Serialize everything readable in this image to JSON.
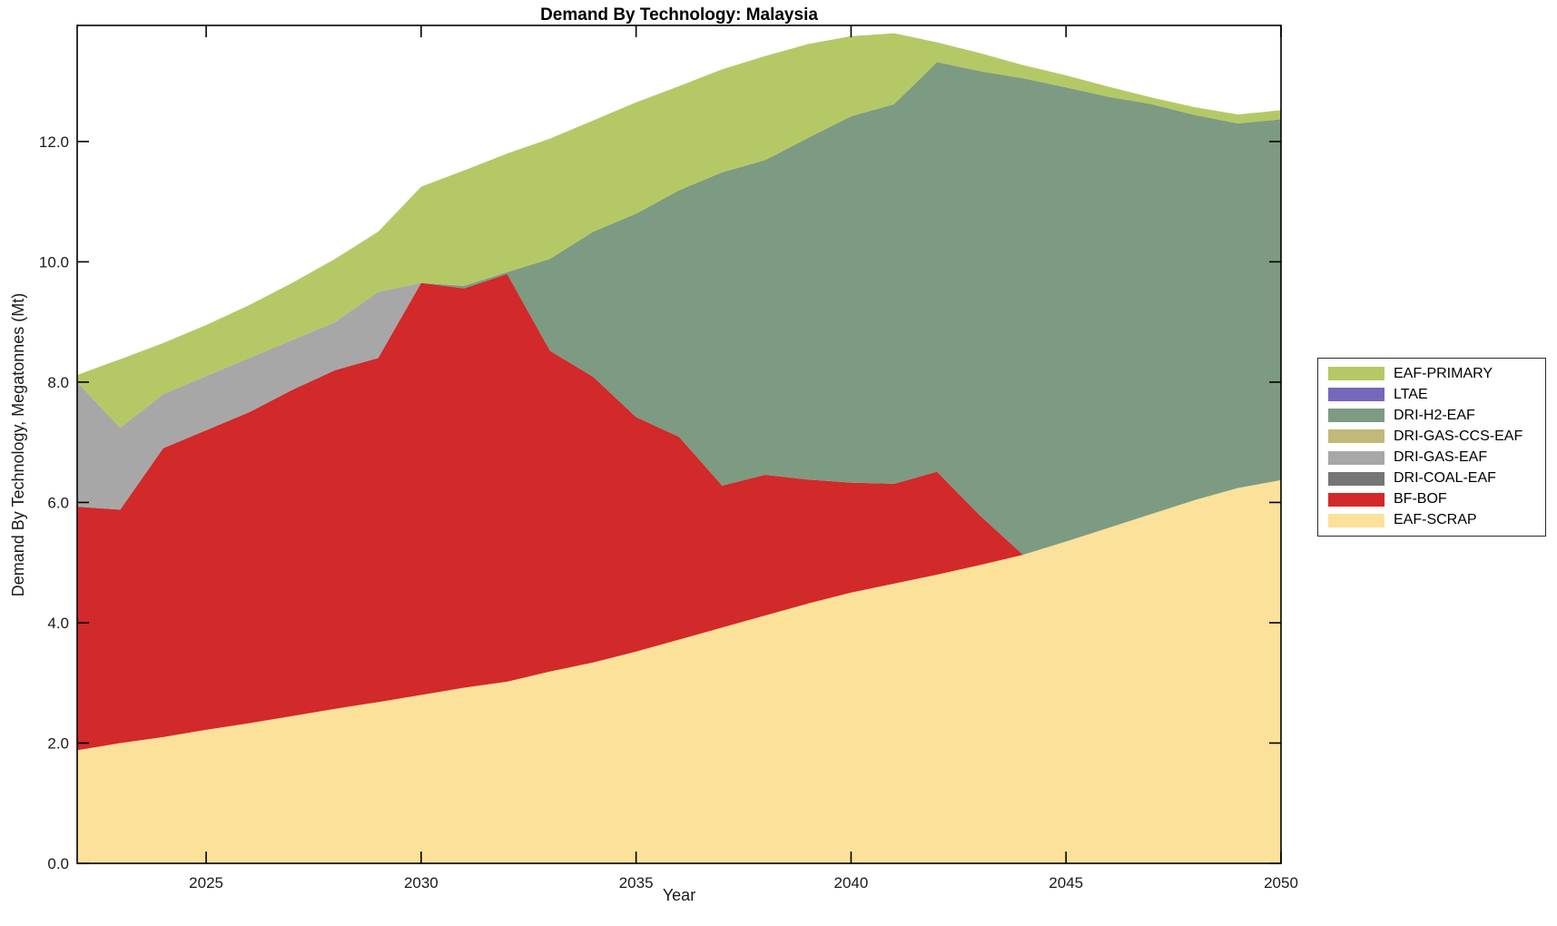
{
  "title": "Demand By Technology: Malaysia",
  "xlabel": "Year",
  "ylabel": "Demand By Technology, Megatonnes (Mt)",
  "axis_color": "#000000",
  "tick_label_color": "#1a1a1a",
  "chart_data": {
    "type": "area",
    "stacked": true,
    "title": "Demand By Technology: Malaysia",
    "xlabel": "Year",
    "ylabel": "Demand By Technology, Megatonnes (Mt)",
    "xlim": [
      2022,
      2050
    ],
    "ylim": [
      0,
      13.93
    ],
    "xticks": [
      2025,
      2030,
      2035,
      2040,
      2045,
      2050
    ],
    "yticks": [
      0,
      2,
      4,
      6,
      8,
      10,
      12
    ],
    "ytick_decimals": 1,
    "grid": false,
    "legend_position": "right-outside",
    "x": [
      2022,
      2023,
      2024,
      2025,
      2026,
      2027,
      2028,
      2029,
      2030,
      2031,
      2032,
      2033,
      2034,
      2035,
      2036,
      2037,
      2038,
      2039,
      2040,
      2041,
      2042,
      2043,
      2044,
      2045,
      2046,
      2047,
      2048,
      2049,
      2050
    ],
    "series": [
      {
        "name": "EAF-SCRAP",
        "color": "#fbe199",
        "values": [
          1.88,
          2.0,
          2.1,
          2.22,
          2.33,
          2.45,
          2.57,
          2.68,
          2.8,
          2.92,
          3.02,
          3.19,
          3.34,
          3.52,
          3.72,
          3.92,
          4.12,
          4.32,
          4.5,
          4.65,
          4.8,
          4.96,
          5.13,
          5.35,
          5.58,
          5.81,
          6.04,
          6.24,
          6.37
        ]
      },
      {
        "name": "BF-BOF",
        "color": "#d2292a",
        "values": [
          4.05,
          3.88,
          4.8,
          4.98,
          5.17,
          5.42,
          5.63,
          5.72,
          6.85,
          6.64,
          6.78,
          5.33,
          4.75,
          3.9,
          3.37,
          2.36,
          2.34,
          2.06,
          1.83,
          1.66,
          1.71,
          0.82,
          0,
          0,
          0,
          0,
          0,
          0,
          0
        ]
      },
      {
        "name": "DRI-COAL-EAF",
        "color": "#757575",
        "values": [
          0,
          0,
          0,
          0,
          0,
          0,
          0,
          0,
          0,
          0,
          0,
          0,
          0,
          0,
          0,
          0,
          0,
          0,
          0,
          0,
          0,
          0,
          0,
          0,
          0,
          0,
          0,
          0,
          0
        ]
      },
      {
        "name": "DRI-GAS-EAF",
        "color": "#a7a7a7",
        "values": [
          2.07,
          1.36,
          0.9,
          0.9,
          0.9,
          0.83,
          0.8,
          1.1,
          0,
          0,
          0,
          0,
          0,
          0,
          0,
          0,
          0,
          0,
          0,
          0,
          0,
          0,
          0,
          0,
          0,
          0,
          0,
          0,
          0
        ]
      },
      {
        "name": "DRI-GAS-CCS-EAF",
        "color": "#c2b878",
        "values": [
          0,
          0,
          0,
          0,
          0,
          0,
          0,
          0,
          0,
          0,
          0,
          0,
          0,
          0,
          0,
          0,
          0,
          0,
          0,
          0,
          0,
          0,
          0,
          0,
          0,
          0,
          0,
          0,
          0
        ]
      },
      {
        "name": "DRI-H2-EAF",
        "color": "#7c9b82",
        "values": [
          0,
          0,
          0,
          0,
          0,
          0,
          0,
          0,
          0,
          0.04,
          0.03,
          1.53,
          2.41,
          3.38,
          4.1,
          5.21,
          5.23,
          5.68,
          6.09,
          6.31,
          6.81,
          7.39,
          7.92,
          7.55,
          7.16,
          6.81,
          6.4,
          6.06,
          6.0
        ]
      },
      {
        "name": "LTAE",
        "color": "#7668bd",
        "values": [
          0,
          0,
          0,
          0,
          0,
          0,
          0,
          0,
          0,
          0,
          0,
          0,
          0,
          0,
          0,
          0,
          0,
          0,
          0,
          0,
          0,
          0,
          0,
          0,
          0,
          0,
          0,
          0,
          0
        ]
      },
      {
        "name": "EAF-PRIMARY",
        "color": "#b4c966",
        "values": [
          0.12,
          1.14,
          0.85,
          0.85,
          0.88,
          0.95,
          1.05,
          1.0,
          1.6,
          1.92,
          1.97,
          2.0,
          1.85,
          1.85,
          1.73,
          1.71,
          1.73,
          1.56,
          1.33,
          1.18,
          0.33,
          0.3,
          0.22,
          0.2,
          0.17,
          0.11,
          0.13,
          0.15,
          0.15
        ]
      }
    ],
    "legend_order": [
      "EAF-PRIMARY",
      "LTAE",
      "DRI-H2-EAF",
      "DRI-GAS-CCS-EAF",
      "DRI-GAS-EAF",
      "DRI-COAL-EAF",
      "BF-BOF",
      "EAF-SCRAP"
    ]
  }
}
